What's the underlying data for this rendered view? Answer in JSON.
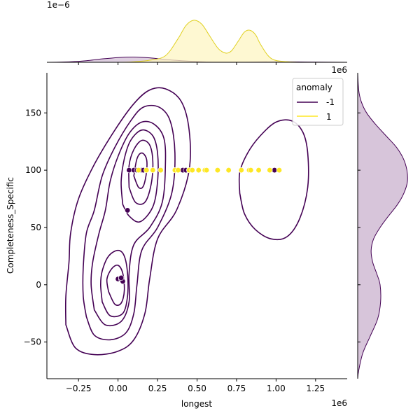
{
  "chart_data": {
    "type": "scatter",
    "subtype": "jointplot-kde",
    "xlabel": "longest",
    "ylabel": "Completeness_Specific",
    "x_multiplier_label": "1e6",
    "y_multiplier_label": "",
    "xlim": [
      -0.45,
      1.45
    ],
    "ylim": [
      -82,
      185
    ],
    "xticks": [
      -0.25,
      0.0,
      0.25,
      0.5,
      0.75,
      1.0,
      1.25
    ],
    "xtick_labels": [
      "−0.25",
      "0.00",
      "0.25",
      "0.50",
      "0.75",
      "1.00",
      "1.25"
    ],
    "yticks": [
      -50,
      0,
      50,
      100,
      150
    ],
    "ytick_labels": [
      "−50",
      "0",
      "50",
      "100",
      "150"
    ],
    "top_marginal": {
      "multiplier_label": "1e−6",
      "ylim": [
        0,
        2.05
      ],
      "series": [
        {
          "name": "-1",
          "x": [
            -0.45,
            -0.3,
            -0.2,
            -0.1,
            0.0,
            0.1,
            0.2,
            0.3,
            0.4,
            0.5,
            0.6,
            0.8,
            1.0,
            1.2,
            1.45
          ],
          "y": [
            0.0,
            0.02,
            0.06,
            0.13,
            0.18,
            0.2,
            0.17,
            0.11,
            0.06,
            0.03,
            0.01,
            0.01,
            0.02,
            0.01,
            0.0
          ]
        },
        {
          "name": "1",
          "x": [
            -0.45,
            0.0,
            0.1,
            0.2,
            0.3,
            0.38,
            0.43,
            0.48,
            0.53,
            0.58,
            0.63,
            0.66,
            0.69,
            0.72,
            0.76,
            0.8,
            0.835,
            0.87,
            0.9,
            0.95,
            1.0,
            1.1,
            1.2,
            1.45
          ],
          "y": [
            0.0,
            0.0,
            0.02,
            0.08,
            0.25,
            0.9,
            1.4,
            1.6,
            1.45,
            1.0,
            0.55,
            0.4,
            0.35,
            0.45,
            0.8,
            1.15,
            1.22,
            1.05,
            0.7,
            0.25,
            0.07,
            0.01,
            0.0,
            0.0
          ]
        }
      ]
    },
    "right_marginal": {
      "series": [
        {
          "name": "-1",
          "y": [
            -82,
            -75,
            -60,
            -45,
            -30,
            -15,
            0,
            10,
            20,
            30,
            40,
            50,
            60,
            70,
            80,
            90,
            100,
            110,
            120,
            130,
            140,
            150,
            160,
            170,
            185
          ],
          "density": [
            0.0,
            0.02,
            0.1,
            0.25,
            0.4,
            0.46,
            0.45,
            0.38,
            0.3,
            0.27,
            0.32,
            0.45,
            0.62,
            0.8,
            0.93,
            1.0,
            0.99,
            0.92,
            0.78,
            0.57,
            0.36,
            0.18,
            0.07,
            0.02,
            0.0
          ]
        }
      ]
    },
    "series": [
      {
        "name": "-1",
        "color": "#440154",
        "points": [
          [
            0.07,
            100
          ],
          [
            0.1,
            100
          ],
          [
            0.12,
            100
          ],
          [
            0.14,
            100
          ],
          [
            0.15,
            100
          ],
          [
            0.16,
            100
          ],
          [
            0.41,
            100
          ],
          [
            0.43,
            100
          ],
          [
            0.99,
            100
          ],
          [
            0.0,
            5
          ],
          [
            0.02,
            5
          ],
          [
            0.03,
            3
          ],
          [
            0.02,
            6
          ],
          [
            0.06,
            65
          ]
        ]
      },
      {
        "name": "1",
        "color": "#fde725",
        "points": [
          [
            0.13,
            100
          ],
          [
            0.18,
            100
          ],
          [
            0.22,
            100
          ],
          [
            0.27,
            100
          ],
          [
            0.36,
            100
          ],
          [
            0.38,
            100
          ],
          [
            0.45,
            100
          ],
          [
            0.47,
            100
          ],
          [
            0.51,
            100
          ],
          [
            0.55,
            100
          ],
          [
            0.56,
            100
          ],
          [
            0.63,
            100
          ],
          [
            0.7,
            100
          ],
          [
            0.78,
            100
          ],
          [
            0.83,
            100
          ],
          [
            0.84,
            100
          ],
          [
            0.89,
            100
          ],
          [
            0.96,
            100
          ],
          [
            1.02,
            100
          ]
        ]
      }
    ],
    "legend": {
      "title": "anomaly",
      "entries": [
        "-1",
        "1"
      ],
      "position": "top-right"
    },
    "colors": {
      "neg": "#440154",
      "pos": "#fde725",
      "pos_line": "#e0d020",
      "neg_fill": "#d3bfd6",
      "pos_fill": "#fef6c3"
    }
  }
}
